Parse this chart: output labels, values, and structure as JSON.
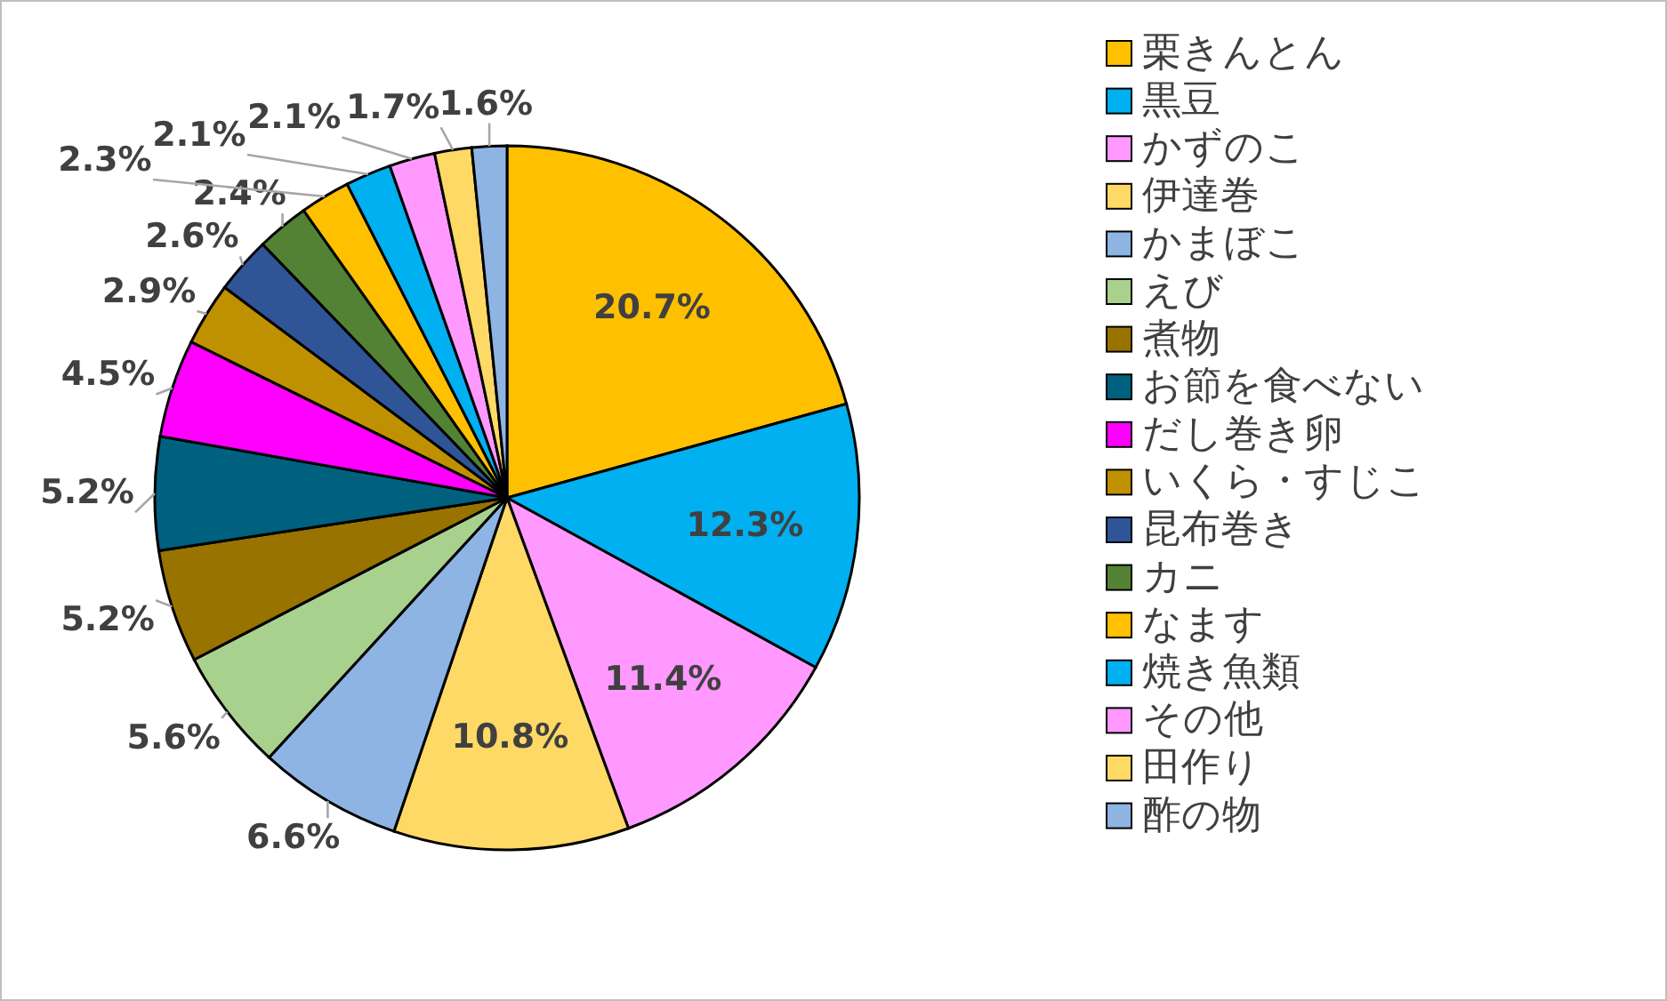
{
  "chart_data": {
    "type": "pie",
    "categories": [
      "栗きんとん",
      "黒豆",
      "かずのこ",
      "伊達巻",
      "かまぼこ",
      "えび",
      "煮物",
      "お節を食べない",
      "だし巻き卵",
      "いくら・すじこ",
      "昆布巻き",
      "カニ",
      "なます",
      "焼き魚類",
      "その他",
      "田作り",
      "酢の物"
    ],
    "values": [
      20.7,
      12.3,
      11.4,
      10.8,
      6.6,
      5.6,
      5.2,
      5.2,
      4.5,
      2.9,
      2.6,
      2.4,
      2.3,
      2.1,
      2.1,
      1.7,
      1.6
    ],
    "colors": [
      "#ffc000",
      "#00b0f0",
      "#ff99ff",
      "#ffd966",
      "#8eb4e3",
      "#a9d18e",
      "#997300",
      "#00617f",
      "#ff00ff",
      "#bf9000",
      "#2f5597",
      "#548235",
      "#ffc000",
      "#00b0f0",
      "#ff99ff",
      "#ffd966",
      "#8eb4e3"
    ],
    "value_labels": [
      "20.7%",
      "12.3%",
      "11.4%",
      "10.8%",
      "6.6%",
      "5.6%",
      "5.2%",
      "5.2%",
      "4.5%",
      "2.9%",
      "2.6%",
      "2.4%",
      "2.3%",
      "2.1%",
      "2.1%",
      "1.7%",
      "1.6%"
    ],
    "legend": "right"
  }
}
